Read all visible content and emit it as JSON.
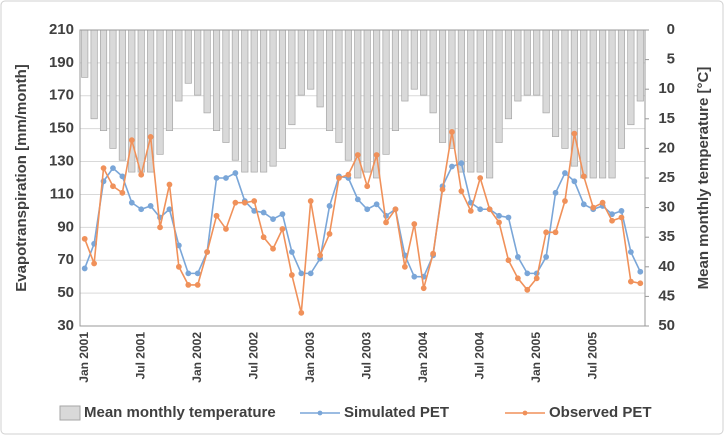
{
  "chart_data": {
    "type": "combo",
    "y_label": "Evapotranspiration [mm/month]",
    "y2_label": "Mean monthly temperature [°C]",
    "categories": [
      "Jan 2001",
      null,
      null,
      null,
      null,
      null,
      "Jul 2001",
      null,
      null,
      null,
      null,
      null,
      "Jan 2002",
      null,
      null,
      null,
      null,
      null,
      "Jul 2002",
      null,
      null,
      null,
      null,
      null,
      "Jan 2003",
      null,
      null,
      null,
      null,
      null,
      "Jul 2003",
      null,
      null,
      null,
      null,
      null,
      "Jan 2004",
      null,
      null,
      null,
      null,
      null,
      "Jul 2004",
      null,
      null,
      null,
      null,
      null,
      "Jan 2005",
      null,
      null,
      null,
      null,
      null,
      "Jul 2005",
      null,
      null,
      null,
      null,
      null
    ],
    "ylim": [
      30,
      210
    ],
    "yticks": [
      30,
      50,
      70,
      90,
      110,
      130,
      150,
      170,
      190,
      210
    ],
    "y2lim": [
      50,
      0
    ],
    "y2ticks": [
      0,
      5,
      10,
      15,
      20,
      25,
      30,
      35,
      40,
      45,
      50
    ],
    "grid": true,
    "legend": "bottom",
    "series": [
      {
        "name": "Mean monthly temperature",
        "kind": "bar",
        "axis": "y2",
        "color": "#d9d9d9",
        "values": [
          8,
          15,
          17,
          20,
          22,
          24,
          24,
          24,
          21,
          17,
          12,
          9,
          11,
          14,
          17,
          19,
          22,
          24,
          24,
          24,
          23,
          20,
          16,
          11,
          10,
          13,
          17,
          19,
          22,
          25,
          24,
          25,
          21,
          17,
          12,
          10,
          11,
          14,
          19,
          20,
          24,
          24,
          24,
          25,
          19,
          15,
          12,
          11,
          11,
          14,
          18,
          20,
          23,
          25,
          25,
          25,
          25,
          20,
          16,
          12
        ]
      },
      {
        "name": "Simulated PET",
        "kind": "line",
        "color": "#7aa6d8",
        "values": [
          65,
          80,
          118,
          126,
          121,
          105,
          101,
          103,
          96,
          101,
          79,
          62,
          62,
          75,
          120,
          120,
          123,
          106,
          100,
          99,
          95,
          98,
          75,
          62,
          62,
          71,
          103,
          121,
          120,
          107,
          101,
          104,
          97,
          101,
          73,
          60,
          60,
          73,
          115,
          127,
          129,
          105,
          101,
          101,
          97,
          96,
          72,
          62,
          62,
          72,
          111,
          123,
          118,
          104,
          101,
          103,
          98,
          100,
          75,
          63
        ]
      },
      {
        "name": "Observed PET",
        "kind": "line",
        "color": "#f0915a",
        "values": [
          83,
          68,
          126,
          115,
          111,
          143,
          122,
          145,
          90,
          116,
          66,
          55,
          55,
          75,
          97,
          89,
          105,
          105,
          106,
          84,
          77,
          89,
          61,
          38,
          106,
          73,
          86,
          120,
          122,
          134,
          115,
          134,
          93,
          101,
          66,
          92,
          53,
          74,
          113,
          148,
          112,
          100,
          120,
          101,
          93,
          70,
          59,
          52,
          59,
          87,
          87,
          106,
          147,
          121,
          102,
          105,
          94,
          96,
          57,
          56
        ]
      }
    ]
  }
}
